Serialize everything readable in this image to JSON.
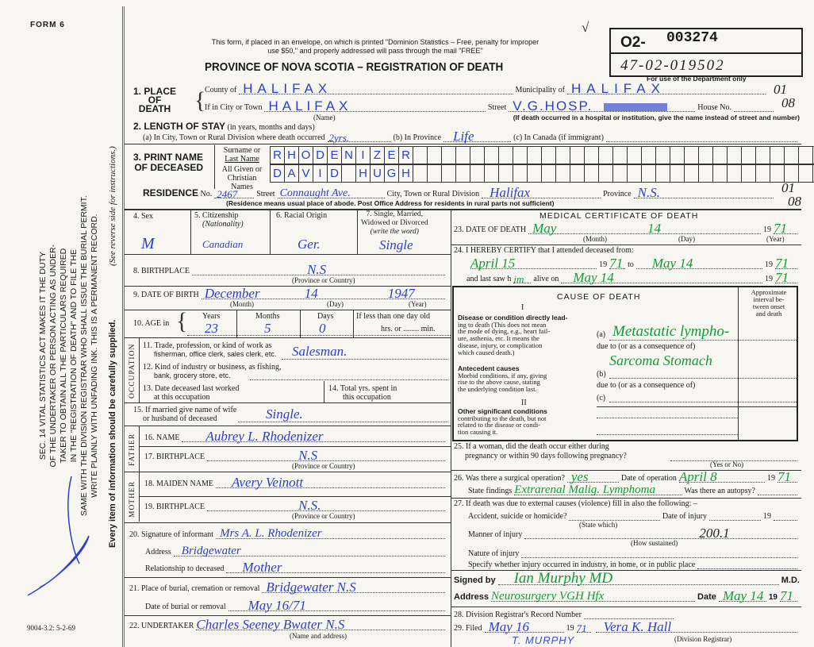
{
  "margin": {
    "form_no": "FORM 6",
    "sec14": [
      "SEC. 14 VITAL STATISTICS ACT MAKES IT THE DUTY",
      "OF THE UNDERTAKER OR PERSON ACTING AS UNDER-",
      "TAKER TO OBTAIN ALL THE PARTICULARS REQUIRED",
      "IN THE \"REGISTRATION OF DEATH\" AND TO FILE THE",
      "SAME WITH THE DIVISION REGISTRAR WHO SHALL ISSUE THE BURIAL PERMIT.",
      "WRITE PLAINLY WITH UNFADING INK. THIS IS A PERMANENT RECORD."
    ],
    "every_item": "Every item of information should be carefully supplied.",
    "see_reverse": "(See reverse side for instructions.)",
    "form_code": "9004-3.2: 5-2-69"
  },
  "header": {
    "notice1": "This form, if placed in an envelope, on which is printed \"Dominion Statistics – Free, penalty for improper",
    "notice2": "use $50,\" and properly addressed will pass through the mail \"FREE\"",
    "title": "PROVINCE OF NOVA SCOTIA – REGISTRATION OF DEATH",
    "reg_prefix": "O2-",
    "reg_no": "003274",
    "dept_no": "47-02-019502",
    "dept_note": "For use of the Department only",
    "check": "√",
    "code_place_1": "01",
    "code_place_2": "08",
    "code_res_1": "01",
    "code_res_2": "08"
  },
  "place": {
    "label": [
      "1. PLACE",
      "OF",
      "DEATH"
    ],
    "county_label": "County of",
    "county": "HALIFAX",
    "municipality_label": "Municipality of",
    "municipality": "HALIFAX",
    "city_label": "If in City or Town",
    "city": "HALIFAX",
    "name_caption": "(Name)",
    "street_label": "Street",
    "street": "V.G.HOSP.",
    "house_label": "House No.",
    "hospital_note": "(If death occurred in a hospital or institution, give the name instead of street and number)"
  },
  "stay": {
    "label": "2. LENGTH OF STAY",
    "sub": "(in years, months and days)",
    "a_label": "(a) In City, Town or Rural Division where death occurred",
    "a": "2yrs.",
    "b_label": "(b) In Province",
    "b": "Life",
    "c_label": "(c) In Canada (if immigrant)"
  },
  "name": {
    "label": [
      "3. PRINT NAME",
      "OF DECEASED"
    ],
    "surname_label": [
      "Surname or",
      "Last Name"
    ],
    "given_label": [
      "All Given or",
      "Christian Names"
    ],
    "surname_cells": [
      "R",
      "H",
      "O",
      "D",
      "E",
      "N",
      "I",
      "Z",
      "E",
      "R",
      "",
      "",
      "",
      "",
      "",
      "",
      "",
      "",
      "",
      "",
      "",
      "",
      "",
      "",
      "",
      "",
      "",
      "",
      "",
      "",
      "",
      "",
      "",
      "",
      "",
      "",
      "",
      "",
      "",
      ""
    ],
    "given_cells": [
      "D",
      "A",
      "V",
      "I",
      "D",
      "",
      "H",
      "U",
      "G",
      "H",
      "",
      "",
      "",
      "",
      "",
      "",
      "",
      "",
      "",
      "",
      "",
      "",
      "",
      "",
      "",
      "",
      "",
      "",
      "",
      "",
      "",
      "",
      "",
      "",
      "",
      "",
      "",
      "",
      "",
      ""
    ]
  },
  "residence": {
    "label": "RESIDENCE",
    "no_label": "No.",
    "no": "2467",
    "street_label": "Street",
    "street": "Connaught Ave.",
    "city_label": "City, Town or Rural Division",
    "city": "Halifax",
    "province_label": "Province",
    "province": "N.S.",
    "note": "(Residence means usual place of abode. Post Office Address for residents in rural parts not sufficient)"
  },
  "personal": {
    "sex_label": "4. Sex",
    "sex": "M",
    "citizenship_label": "5. Citizenship",
    "citizenship_sub": "(Nationality)",
    "citizenship": "Canadian",
    "racial_label": "6. Racial Origin",
    "racial": "Ger.",
    "marital_label": [
      "7. Single, Married,",
      "Widowed or Divorced",
      "(write the word)"
    ],
    "marital": "Single",
    "birthplace_label": "8. BIRTHPLACE",
    "birthplace": "N.S",
    "province_caption": "(Province or Country)",
    "dob_label": "9. DATE OF BIRTH",
    "dob_month": "December",
    "dob_day": "14",
    "dob_year": "1947",
    "month_caption": "(Month)",
    "day_caption": "(Day)",
    "year_caption": "(Year)",
    "age_label": "10. AGE in",
    "years_label": "Years",
    "years": "23",
    "months_label": "Months",
    "months": "5",
    "days_label": "Days",
    "days": "0",
    "lessday_label": "If less than one day old",
    "hrs_label": "hrs. or",
    "min_label": "min."
  },
  "occupation": {
    "side": "OCCUPATION",
    "trade_label": [
      "11. Trade, profession, or kind of work as",
      "fisherman, office clerk, sales clerk, etc."
    ],
    "trade": "Salesman.",
    "industry_label": [
      "12. Kind of industry or business, as fishing,",
      "bank, grocery store, etc."
    ],
    "lastworked_label": [
      "13. Date deceased last worked",
      "at this occupation"
    ],
    "totalyrs_label": [
      "14. Total yrs. spent in",
      "this occupation"
    ]
  },
  "spouse": {
    "label": [
      "15. If married give name of wife",
      "or husband of deceased"
    ],
    "value": "Single."
  },
  "father": {
    "side": "FATHER",
    "name_label": "16. NAME",
    "name": "Aubrey L. Rhodenizer",
    "birthplace_label": "17. BIRTHPLACE",
    "birthplace": "N.S"
  },
  "mother": {
    "side": "MOTHER",
    "maiden_label": "18. MAIDEN NAME",
    "maiden": "Avery Veinott",
    "birthplace_label": "19. BIRTHPLACE",
    "birthplace": "N.S."
  },
  "informant": {
    "sig_label": "20. Signature of informant",
    "sig": "Mrs A. L. Rhodenizer",
    "address_label": "Address",
    "address": "Bridgewater",
    "rel_label": "Relationship to deceased",
    "rel": "Mother"
  },
  "burial": {
    "place_label": "21. Place of burial, cremation or removal",
    "place": "Bridgewater N.S",
    "date_label": "Date of burial or removal",
    "date": "May 16/71"
  },
  "undertaker": {
    "label": "22. UNDERTAKER",
    "value": "Charles Seeney Bwater N.S",
    "caption": "(Name and address)"
  },
  "medical": {
    "title": "MEDICAL CERTIFICATE OF DEATH",
    "dod_label": "23. DATE OF DEATH",
    "dod_month": "May",
    "dod_day": "14",
    "dod_year": "71",
    "century": "19",
    "certify_label": "24. I HEREBY CERTIFY that I attended deceased from:",
    "from": "April 15",
    "from_year": "71",
    "to_label": "to",
    "to": "May 14",
    "to_year": "71",
    "lastsaw_label": "and last saw h",
    "lastsaw_h": "im",
    "alive_label": "alive on",
    "alive": "May 14",
    "alive_year": "71"
  },
  "cause": {
    "title": "CAUSE OF DEATH",
    "part1": "I",
    "part2": "II",
    "interval_label": [
      "Approximate",
      "interval be-",
      "tween onset",
      "and death"
    ],
    "direct_label": [
      "Disease or condition directly lead-",
      "ing to death (This does not mean",
      "the mode of dying, e.g., heart fail-",
      "ure, asthenia, etc. It means the",
      "disease, injury, or complication",
      "which caused death.)"
    ],
    "antecedent_label": [
      "Antecedent causes",
      "Morbid conditions, if any, giving",
      "rise to the above cause, stating",
      "the underlying condition last."
    ],
    "other_label": [
      "Other significant conditions",
      "contributing to the death, but not",
      "related to the disease or condi-",
      "tion causing it."
    ],
    "a_label": "(a)",
    "a": "Metastatic lympho-",
    "due_to": "due to (or as a consequence of)",
    "a2": "Sarcoma Stomach",
    "b_label": "(b)",
    "c_label": "(c)"
  },
  "q25": {
    "label": [
      "25. If a woman, did the death occur either during",
      "pregnancy or within 90 days following pregnancy?"
    ],
    "caption": "(Yes or No)"
  },
  "q26": {
    "label": "26. Was there a surgical operation?",
    "value": "yes",
    "date_label": "Date of operation",
    "date": "April 8",
    "year": "71",
    "findings_label": "State findings",
    "findings": "Extrarenal Malig. Lymphoma",
    "autopsy_label": "Was there an autopsy?"
  },
  "q27": {
    "label": "27. If death was due to external causes (violence) fill in also the following: –",
    "accident_label": "Accident, suicide or homicide?",
    "state_which": "(State which)",
    "injury_date_label": "Date of injury",
    "manner_label": "Manner of injury",
    "manner": "200.1",
    "how": "(How sustained)",
    "nature_label": "Nature of injury",
    "specify_label": "Specify whether injury occurred in industry, in home, or in public place"
  },
  "signed": {
    "label": "Signed by",
    "value": "Ian Murphy MD",
    "md": "M.D.",
    "address_label": "Address",
    "address": "Neurosurgery VGH Hfx",
    "date_label": "Date",
    "date": "May 14",
    "year": "71"
  },
  "registrar": {
    "record_label": "28. Division Registrar's Record Number",
    "filed_label": "29. Filed",
    "filed": "May 16",
    "filed_year": "71",
    "signature": "Vera K. Hall",
    "caption": "(Division Registrar)",
    "stamp": "T. MURPHY"
  },
  "colors": {
    "blue_ink": "#2b3fc9",
    "green_ink": "#139a3a",
    "paper": "#f8f6f1"
  }
}
